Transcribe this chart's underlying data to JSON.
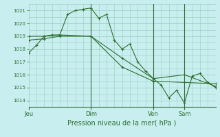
{
  "bg_color": "#c8eef0",
  "grid_color": "#99ccbb",
  "line_color": "#2d6e2d",
  "xlabel": "Pression niveau de la mer( hPa )",
  "ylim": [
    1013.5,
    1021.5
  ],
  "yticks": [
    1014,
    1015,
    1016,
    1017,
    1018,
    1019,
    1020,
    1021
  ],
  "day_labels": [
    "Jeu",
    "Dim",
    "Ven",
    "Sam"
  ],
  "day_positions": [
    0,
    48,
    96,
    120
  ],
  "vline_positions": [
    48,
    96,
    120
  ],
  "xlim": [
    0,
    144
  ],
  "series1": {
    "x": [
      0,
      6,
      12,
      18,
      24,
      30,
      36,
      42,
      48,
      54,
      60,
      66,
      72,
      78,
      84,
      90,
      96,
      102,
      108,
      114,
      120,
      126,
      132,
      138,
      144
    ],
    "y": [
      1017.7,
      1018.3,
      1019.0,
      1019.1,
      1019.1,
      1020.7,
      1021.0,
      1021.1,
      1021.2,
      1020.4,
      1020.7,
      1018.7,
      1018.0,
      1018.4,
      1017.0,
      1016.3,
      1015.7,
      1015.2,
      1014.2,
      1014.8,
      1013.8,
      1015.9,
      1016.1,
      1015.4,
      1015.0
    ]
  },
  "series2": {
    "x": [
      0,
      12,
      24,
      48,
      72,
      96,
      120,
      144
    ],
    "y": [
      1019.0,
      1019.0,
      1019.1,
      1019.0,
      1017.3,
      1015.7,
      1016.0,
      1015.1
    ]
  },
  "series3": {
    "x": [
      0,
      12,
      24,
      48,
      72,
      96,
      120,
      144
    ],
    "y": [
      1018.7,
      1018.8,
      1019.0,
      1019.0,
      1016.6,
      1015.5,
      1015.4,
      1015.3
    ]
  }
}
